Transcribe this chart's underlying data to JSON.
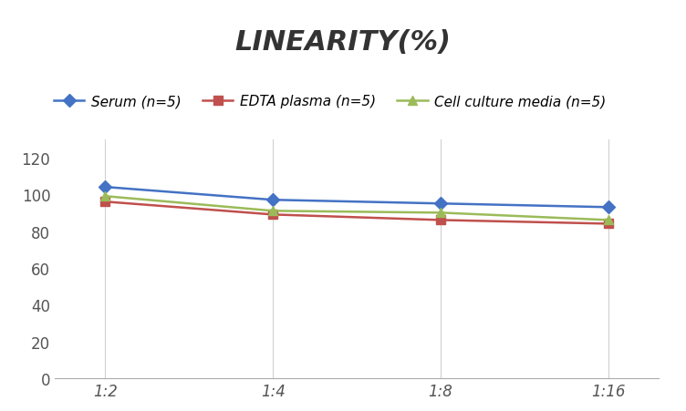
{
  "title": "LINEARITY(%)",
  "x_labels": [
    "1:2",
    "1:4",
    "1:8",
    "1:16"
  ],
  "x_positions": [
    0,
    1,
    2,
    3
  ],
  "series": [
    {
      "label": "Serum (n=5)",
      "values": [
        104,
        97,
        95,
        93
      ],
      "color": "#4472C4",
      "marker": "D",
      "linewidth": 1.8
    },
    {
      "label": "EDTA plasma (n=5)",
      "values": [
        96,
        89,
        86,
        84
      ],
      "color": "#C0504D",
      "marker": "s",
      "linewidth": 1.8
    },
    {
      "label": "Cell culture media (n=5)",
      "values": [
        99,
        91,
        90,
        86
      ],
      "color": "#9BBB59",
      "marker": "^",
      "linewidth": 1.8
    }
  ],
  "ylim": [
    0,
    130
  ],
  "yticks": [
    0,
    20,
    40,
    60,
    80,
    100,
    120
  ],
  "background_color": "#ffffff",
  "title_fontsize": 22,
  "legend_fontsize": 11,
  "tick_fontsize": 12
}
